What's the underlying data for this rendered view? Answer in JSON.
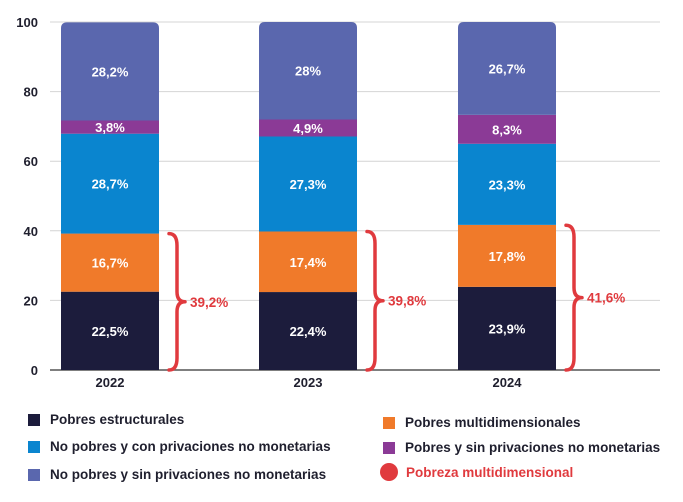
{
  "chart_data": {
    "type": "bar",
    "stacked": true,
    "categories": [
      "2022",
      "2023",
      "2024"
    ],
    "ylim": [
      0,
      100
    ],
    "yticks": [
      0,
      20,
      40,
      60,
      80,
      100
    ],
    "grid": true,
    "legend_position": "bottom",
    "series": [
      {
        "name": "Pobres estructurales",
        "color": "#1c1c3c",
        "values": [
          22.5,
          22.4,
          23.9
        ],
        "labels": [
          "22,5%",
          "22,4%",
          "23,9%"
        ]
      },
      {
        "name": "Pobres multidimensionales",
        "color": "#f07a2a",
        "values": [
          16.7,
          17.4,
          17.8
        ],
        "labels": [
          "16,7%",
          "17,4%",
          "17,8%"
        ]
      },
      {
        "name": "No pobres y con privaciones no monetarias",
        "color": "#0a85cf",
        "values": [
          28.7,
          27.3,
          23.3
        ],
        "labels": [
          "28,7%",
          "27,3%",
          "23,3%"
        ]
      },
      {
        "name": "Pobres y sin privaciones no monetarias",
        "color": "#8b3a96",
        "values": [
          3.8,
          4.9,
          8.3
        ],
        "labels": [
          "3,8%",
          "4,9%",
          "8,3%"
        ]
      },
      {
        "name": "No pobres y sin privaciones no monetarias",
        "color": "#5a67ae",
        "values": [
          28.2,
          28.0,
          26.7
        ],
        "labels": [
          "28,2%",
          "28%",
          "26,7%"
        ]
      }
    ],
    "multidimensional_poverty": {
      "name": "Pobreza multidimensional",
      "color": "#e03a3e",
      "values": [
        39.2,
        39.8,
        41.6
      ],
      "labels": [
        "39,2%",
        "39,8%",
        "41,6%"
      ]
    }
  },
  "legend": {
    "items": [
      {
        "label": "Pobres estructurales",
        "color": "#1c1c3c",
        "shape": "square"
      },
      {
        "label": "Pobres multidimensionales",
        "color": "#f07a2a",
        "shape": "square"
      },
      {
        "label": "No pobres y con privaciones no monetarias",
        "color": "#0a85cf",
        "shape": "square"
      },
      {
        "label": "Pobres y sin privaciones no monetarias",
        "color": "#8b3a96",
        "shape": "square"
      },
      {
        "label": "No pobres y sin privaciones no monetarias",
        "color": "#5a67ae",
        "shape": "square"
      },
      {
        "label": "Pobreza multidimensional",
        "color": "#e03a3e",
        "shape": "circle"
      }
    ]
  }
}
